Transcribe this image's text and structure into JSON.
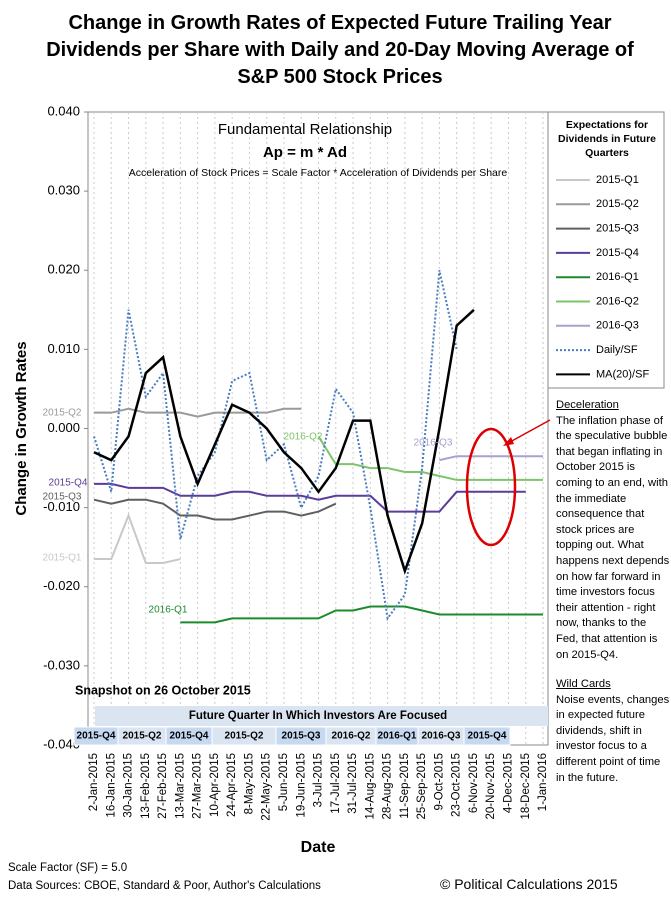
{
  "chart_data": {
    "type": "line",
    "title": "Change in Growth Rates of Expected Future Trailing Year Dividends per Share with Daily and 20-Day Moving Average of S&P 500 Stock Prices",
    "y_label": "Change in Growth Rates",
    "x_label": "Date",
    "box_title": "Fundamental Relationship",
    "box_formula": "Ap = m * Ad",
    "box_text": "Acceleration of Stock Prices = Scale Factor * Acceleration of Dividends per Share",
    "legend_title": "Expectations for Dividends in Future Quarters",
    "grid": true,
    "categories": [
      "2-Jan-2015",
      "16-Jan-2015",
      "30-Jan-2015",
      "13-Feb-2015",
      "27-Feb-2015",
      "13-Mar-2015",
      "27-Mar-2015",
      "10-Apr-2015",
      "24-Apr-2015",
      "8-May-2015",
      "22-May-2015",
      "5-Jun-2015",
      "19-Jun-2015",
      "3-Jul-2015",
      "17-Jul-2015",
      "31-Jul-2015",
      "14-Aug-2015",
      "28-Aug-2015",
      "11-Sep-2015",
      "25-Sep-2015",
      "9-Oct-2015",
      "23-Oct-2015",
      "6-Nov-2015",
      "20-Nov-2015",
      "4-Dec-2015",
      "18-Dec-2015",
      "1-Jan-2016"
    ],
    "ylim": [
      -0.04,
      0.04
    ],
    "yticks": [
      {
        "value": -0.04,
        "label": "-0.040"
      },
      {
        "value": -0.03,
        "label": "-0.030"
      },
      {
        "value": -0.02,
        "label": "-0.020"
      },
      {
        "value": -0.01,
        "label": "-0.010"
      },
      {
        "value": 0,
        "label": "0.000"
      },
      {
        "value": 0.01,
        "label": "0.010"
      },
      {
        "value": 0.02,
        "label": "0.020"
      },
      {
        "value": 0.03,
        "label": "0.030"
      },
      {
        "value": 0.04,
        "label": "0.040"
      }
    ],
    "series": [
      {
        "name": "2015-Q1",
        "color": "#c8c8c8",
        "values": [
          -0.0165,
          -0.0165,
          -0.011,
          -0.017,
          -0.017,
          -0.0165,
          null,
          null,
          null,
          null,
          null,
          null,
          null,
          null,
          null,
          null,
          null,
          null,
          null,
          null,
          null,
          null,
          null,
          null,
          null,
          null,
          null
        ]
      },
      {
        "name": "2015-Q2",
        "color": "#9a9a9a",
        "values": [
          0.002,
          0.002,
          0.0025,
          0.002,
          0.002,
          0.002,
          0.0015,
          0.002,
          0.002,
          0.002,
          0.002,
          0.0025,
          0.0025,
          null,
          null,
          null,
          null,
          null,
          null,
          null,
          null,
          null,
          null,
          null,
          null,
          null,
          null
        ]
      },
      {
        "name": "2015-Q3",
        "color": "#5f5f5f",
        "values": [
          -0.009,
          -0.0095,
          -0.009,
          -0.009,
          -0.0095,
          -0.011,
          -0.011,
          -0.0115,
          -0.0115,
          -0.011,
          -0.0105,
          -0.0105,
          -0.011,
          -0.0105,
          -0.0095,
          null,
          null,
          null,
          null,
          null,
          null,
          null,
          null,
          null,
          null,
          null,
          null
        ]
      },
      {
        "name": "2015-Q4",
        "color": "#5b3c99",
        "values": [
          -0.007,
          -0.007,
          -0.0075,
          -0.0075,
          -0.0075,
          -0.0085,
          -0.0085,
          -0.0085,
          -0.008,
          -0.008,
          -0.0085,
          -0.0085,
          -0.0085,
          -0.009,
          -0.0085,
          -0.0085,
          -0.0085,
          -0.0105,
          -0.0105,
          -0.0105,
          -0.0105,
          -0.008,
          -0.008,
          -0.008,
          -0.008,
          -0.008,
          null
        ]
      },
      {
        "name": "2016-Q1",
        "color": "#1e8a2e",
        "values": [
          null,
          null,
          null,
          null,
          null,
          -0.0245,
          -0.0245,
          -0.0245,
          -0.024,
          -0.024,
          -0.024,
          -0.024,
          -0.024,
          -0.024,
          -0.023,
          -0.023,
          -0.0225,
          -0.0225,
          -0.0225,
          -0.023,
          -0.0235,
          -0.0235,
          -0.0235,
          -0.0235,
          -0.0235,
          -0.0235,
          -0.0235
        ]
      },
      {
        "name": "2016-Q2",
        "color": "#7dc46a",
        "values": [
          null,
          null,
          null,
          null,
          null,
          null,
          null,
          null,
          null,
          null,
          null,
          null,
          null,
          -0.001,
          -0.0045,
          -0.0045,
          -0.005,
          -0.005,
          -0.0055,
          -0.0055,
          -0.006,
          -0.0065,
          -0.0065,
          -0.0065,
          -0.0065,
          -0.0065,
          -0.0065
        ]
      },
      {
        "name": "2016-Q3",
        "color": "#a9a0d0",
        "values": [
          null,
          null,
          null,
          null,
          null,
          null,
          null,
          null,
          null,
          null,
          null,
          null,
          null,
          null,
          null,
          null,
          null,
          null,
          null,
          null,
          -0.004,
          -0.0035,
          -0.0035,
          -0.0035,
          -0.0035,
          -0.0035,
          -0.0035
        ]
      },
      {
        "name": "Daily/SF",
        "color": "#4a7cc0",
        "dashed": true,
        "values": [
          -0.001,
          -0.008,
          0.015,
          0.004,
          0.007,
          -0.014,
          -0.006,
          -0.003,
          0.006,
          0.007,
          -0.004,
          -0.002,
          -0.01,
          -0.006,
          0.005,
          0.002,
          -0.01,
          -0.024,
          -0.021,
          -0.005,
          0.02,
          0.01,
          null,
          null,
          null,
          null,
          null
        ]
      },
      {
        "name": "MA(20)/SF",
        "color": "#000000",
        "values": [
          -0.003,
          -0.004,
          -0.001,
          0.007,
          0.009,
          -0.001,
          -0.007,
          -0.002,
          0.003,
          0.002,
          0,
          -0.003,
          -0.005,
          -0.008,
          -0.005,
          0.001,
          0.001,
          -0.011,
          -0.018,
          -0.012,
          0,
          0.013,
          0.015,
          null,
          null,
          null,
          null
        ]
      }
    ],
    "snapshot": "Snapshot on 26 October 2015",
    "focus_title": "Future Quarter In Which Investors Are Focused",
    "focus_quarters": [
      "2015-Q4",
      "2015-Q2",
      "2015-Q4",
      "2015-Q2",
      "2015-Q3",
      "2016-Q2",
      "2016-Q1",
      "2016-Q3",
      "2015-Q4"
    ],
    "notes": [
      {
        "heading": "Deceleration",
        "text": "The inflation phase of the speculative bubble that began inflating in October 2015 is coming to an end, with the immediate consequence that stock prices are topping out.  What happens next depends on how far forward in time investors focus their attention - right now, thanks to the Fed, that attention is on 2015-Q4."
      },
      {
        "heading": "Wild Cards",
        "text": "Noise events, changes in expected future dividends, shift in investor focus to a different point of time in the future."
      }
    ],
    "scale_factor": "Scale Factor (SF) = 5.0",
    "sources": "Data Sources: CBOE, Standard & Poor, Author's Calculations",
    "credit": "© Political Calculations 2015"
  }
}
